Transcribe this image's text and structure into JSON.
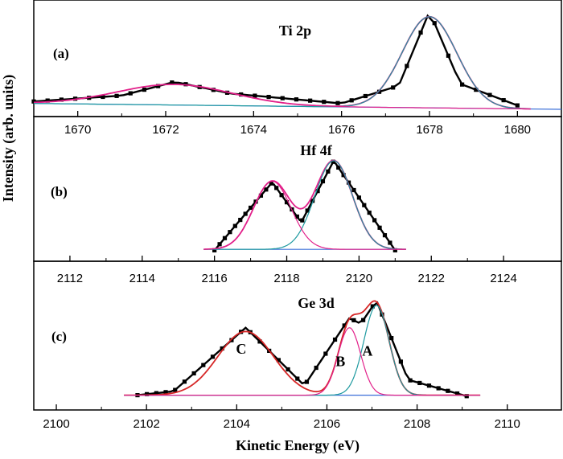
{
  "figure": {
    "ylabel": "Intensity (arb. units)",
    "xlabel": "Kinetic Energy (eV)"
  },
  "chart_data": [
    {
      "type": "line",
      "panel": "(a)",
      "title": "Ti 2p",
      "xlim": [
        1669,
        1681
      ],
      "ylim": [
        0,
        1.0
      ],
      "xticks": [
        1670,
        1672,
        1674,
        1676,
        1678,
        1680
      ],
      "peak_labels": [],
      "series": [
        {
          "role": "data",
          "color": "#000000",
          "x": [
            1669.0,
            1671.0,
            1672.2,
            1673.5,
            1676.0,
            1677.3,
            1678.0,
            1678.7,
            1680.0
          ],
          "values": [
            0.08,
            0.14,
            0.28,
            0.16,
            0.06,
            0.24,
            1.0,
            0.26,
            0.04
          ]
        },
        {
          "role": "envelope",
          "color": "#e2208a",
          "peaks": [
            {
              "center": 1672.2,
              "height": 0.21,
              "width": 1.3
            },
            {
              "center": 1678.0,
              "height": 0.93,
              "width": 0.62
            }
          ]
        },
        {
          "role": "component",
          "color": "#1f9aa0",
          "peaks": [
            {
              "center": 1678.0,
              "height": 0.93,
              "width": 0.62
            }
          ]
        },
        {
          "role": "component",
          "color": "#e2208a",
          "peaks": [
            {
              "center": 1672.2,
              "height": 0.21,
              "width": 1.3
            }
          ]
        },
        {
          "role": "background",
          "color": "#3a6fd8",
          "x": [
            1669.0,
            1681.0
          ],
          "values": [
            0.06,
            0.0
          ]
        }
      ]
    },
    {
      "type": "line",
      "panel": "(b)",
      "title": "Hf 4f",
      "xlim": [
        2111,
        2125.6
      ],
      "ylim": [
        0,
        1.0
      ],
      "xticks": [
        2112,
        2114,
        2116,
        2118,
        2120,
        2122,
        2124
      ],
      "peak_labels": [],
      "series": [
        {
          "role": "data",
          "color": "#000000",
          "x": [
            2116.0,
            2117.6,
            2118.4,
            2119.3,
            2121.0
          ],
          "values": [
            0.04,
            0.77,
            0.34,
            1.0,
            0.04
          ]
        },
        {
          "role": "envelope",
          "color": "#e2208a",
          "peaks": [
            {
              "center": 2117.6,
              "height": 0.73,
              "width": 0.52
            },
            {
              "center": 2119.3,
              "height": 0.95,
              "width": 0.52
            }
          ]
        },
        {
          "role": "component",
          "color": "#1f9aa0",
          "peaks": [
            {
              "center": 2119.3,
              "height": 0.95,
              "width": 0.52
            }
          ]
        },
        {
          "role": "component",
          "color": "#e2208a",
          "peaks": [
            {
              "center": 2117.6,
              "height": 0.73,
              "width": 0.52
            }
          ]
        },
        {
          "role": "background",
          "color": "#3a6fd8",
          "x": [
            2116.0,
            2121.0
          ],
          "values": [
            0.05,
            0.05
          ]
        }
      ]
    },
    {
      "type": "line",
      "panel": "(c)",
      "title": "Ge 3d",
      "xlim": [
        2099.5,
        2111.2
      ],
      "ylim": [
        0,
        1.0
      ],
      "xticks": [
        2100,
        2102,
        2104,
        2106,
        2108,
        2110
      ],
      "peak_labels": [
        {
          "text": "C",
          "x": 2104.1,
          "y": 0.45
        },
        {
          "text": "B",
          "x": 2106.3,
          "y": 0.32
        },
        {
          "text": "A",
          "x": 2106.9,
          "y": 0.43
        }
      ],
      "series": [
        {
          "role": "data",
          "color": "#000000",
          "x": [
            2101.8,
            2102.6,
            2104.2,
            2105.5,
            2106.5,
            2106.75,
            2107.1,
            2107.8,
            2109.1
          ],
          "values": [
            0.02,
            0.06,
            0.72,
            0.12,
            0.82,
            0.76,
            1.0,
            0.18,
            0.01
          ]
        },
        {
          "role": "envelope",
          "color": "#d62626",
          "peaks": [
            {
              "center": 2104.2,
              "height": 0.66,
              "width": 0.62
            },
            {
              "center": 2106.5,
              "height": 0.7,
              "width": 0.25
            },
            {
              "center": 2107.1,
              "height": 0.93,
              "width": 0.28
            }
          ]
        },
        {
          "role": "component",
          "color": "#1f9aa0",
          "peaks": [
            {
              "center": 2107.1,
              "height": 0.93,
              "width": 0.28
            }
          ]
        },
        {
          "role": "component",
          "color": "#e2208a",
          "peaks": [
            {
              "center": 2106.5,
              "height": 0.7,
              "width": 0.25
            }
          ]
        },
        {
          "role": "background",
          "color": "#3a6fd8",
          "x": [
            2101.8,
            2109.1
          ],
          "values": [
            0.02,
            0.02
          ]
        }
      ]
    }
  ]
}
